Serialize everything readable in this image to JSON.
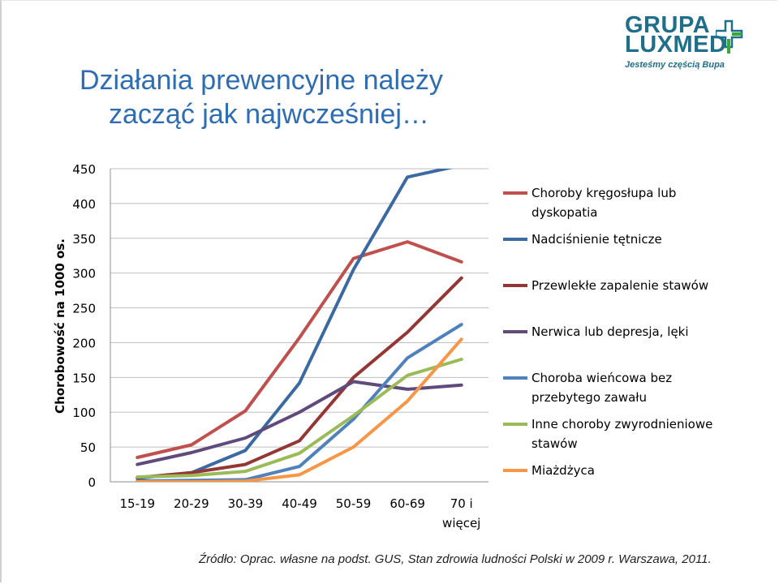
{
  "title": {
    "line1": "Działania prewencyjne należy",
    "line2": "zacząć jak najwcześniej…"
  },
  "logo": {
    "word1": "GRUPA",
    "word2": "LUXMED",
    "tagline": "Jesteśmy częścią Bupa"
  },
  "source": "Źródło: Oprac. własne na podst. GUS,  Stan zdrowia ludności Polski w 2009 r. Warszawa, 2011.",
  "chart_data": {
    "type": "line",
    "ylabel": "Chorobowość na 1000 os.",
    "ylim": [
      0,
      450
    ],
    "yticks": [
      0,
      50,
      100,
      150,
      200,
      250,
      300,
      350,
      400,
      450
    ],
    "categories": [
      "15-19",
      "20-29",
      "30-39",
      "40-49",
      "50-59",
      "60-69",
      "70 i więcej"
    ],
    "grid": true,
    "legend_position": "right",
    "series": [
      {
        "name": "Choroby kręgosłupa lub dyskopatia",
        "color": "#c0504d",
        "values": [
          35,
          53,
          102,
          207,
          321,
          345,
          316
        ]
      },
      {
        "name": "Nadciśnienie tętnicze",
        "color": "#3b6aa3",
        "values": [
          5,
          13,
          45,
          142,
          305,
          438,
          455
        ]
      },
      {
        "name": "Przewlekłe zapalenie stawów",
        "color": "#943634",
        "values": [
          6,
          13,
          25,
          59,
          150,
          215,
          293
        ]
      },
      {
        "name": "Nerwica lub depresja, lęki",
        "color": "#604a7b",
        "values": [
          25,
          42,
          63,
          100,
          144,
          133,
          139
        ]
      },
      {
        "name": "Choroba wieńcowa bez przebytego zawału",
        "color": "#4f81bd",
        "values": [
          1,
          2,
          3,
          22,
          90,
          178,
          226
        ]
      },
      {
        "name": "Inne choroby zwyrodnieniowe stawów",
        "color": "#9bbb59",
        "values": [
          7,
          9,
          15,
          41,
          95,
          153,
          176
        ]
      },
      {
        "name": "Miażdżyca",
        "color": "#f79646",
        "values": [
          0,
          0,
          1,
          10,
          50,
          116,
          205
        ]
      }
    ],
    "legend_lines": [
      [
        "Choroby kręgosłupa lub",
        "dyskopatia"
      ],
      [
        "Nadciśnienie tętnicze"
      ],
      [
        "Przewlekłe zapalenie stawów"
      ],
      [
        "Nerwica lub depresja, lęki"
      ],
      [
        "Choroba wieńcowa bez",
        "przebytego zawału"
      ],
      [
        "Inne choroby zwyrodnieniowe",
        "stawów"
      ],
      [
        "Miażdżyca"
      ]
    ],
    "category_lines": [
      [
        "15-19"
      ],
      [
        "20-29"
      ],
      [
        "30-39"
      ],
      [
        "40-49"
      ],
      [
        "50-59"
      ],
      [
        "60-69"
      ],
      [
        "70 i",
        "więcej"
      ]
    ]
  }
}
